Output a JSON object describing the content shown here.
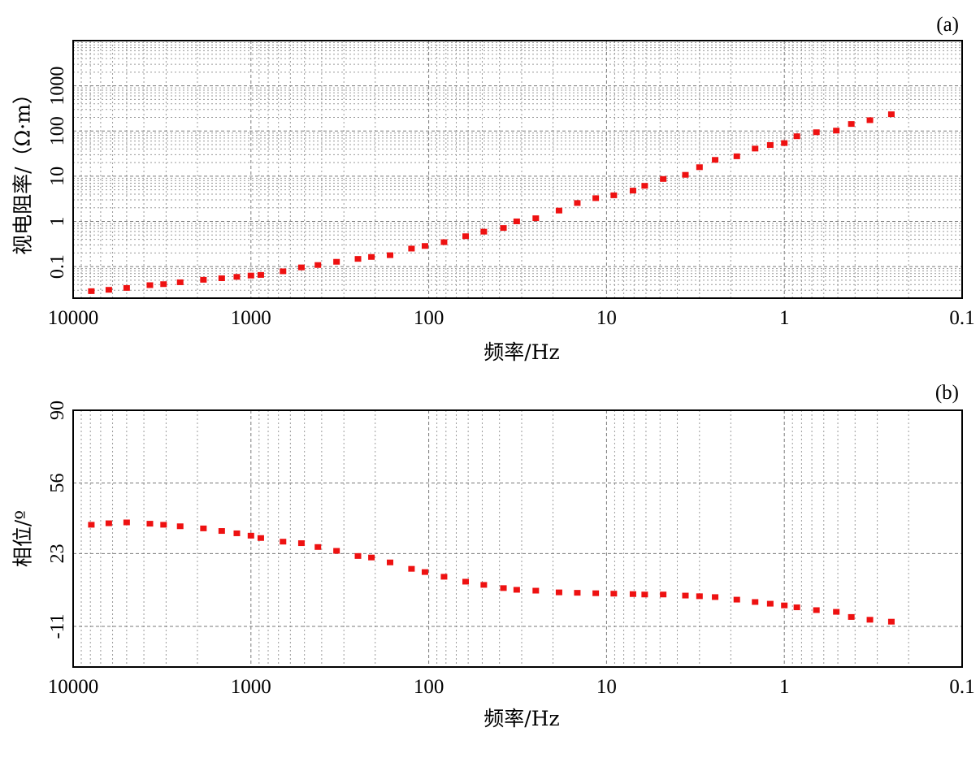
{
  "chart_data": [
    {
      "panel_label": "(a)",
      "type": "scatter",
      "title": "",
      "xlabel": "频率/Hz",
      "ylabel": "视电阻率/（Ω·m）",
      "x_scale": "log",
      "x_reversed": true,
      "xlim": [
        10000,
        0.1
      ],
      "xticks": [
        "10000",
        "1000",
        "100",
        "10",
        "1",
        "0.1"
      ],
      "y_scale": "log",
      "ylim": [
        0.02,
        10000
      ],
      "yticks": [
        "0.1",
        "1",
        "10",
        "100",
        "1000"
      ],
      "grid": true,
      "marker_color": "#ee1111",
      "series": [
        {
          "x": [
            7900,
            6300,
            5000,
            3700,
            3100,
            2500,
            1850,
            1460,
            1200,
            1000,
            880,
            660,
            520,
            420,
            330,
            250,
            210,
            165,
            125,
            105,
            82,
            62,
            49,
            38,
            32,
            25,
            18.5,
            14.6,
            11.5,
            9.1,
            7.1,
            6.1,
            4.8,
            3.6,
            3.0,
            2.45,
            1.85,
            1.46,
            1.2,
            1.0,
            0.85,
            0.66,
            0.51,
            0.42,
            0.33,
            0.25
          ],
          "y": [
            0.028,
            0.03,
            0.033,
            0.038,
            0.04,
            0.044,
            0.05,
            0.054,
            0.058,
            0.062,
            0.064,
            0.077,
            0.094,
            0.106,
            0.125,
            0.145,
            0.16,
            0.175,
            0.245,
            0.28,
            0.34,
            0.46,
            0.58,
            0.7,
            0.98,
            1.15,
            1.7,
            2.5,
            3.2,
            3.7,
            4.7,
            6.0,
            8.5,
            10.5,
            15.5,
            22.5,
            27,
            40,
            48,
            53,
            75,
            92,
            100,
            140,
            170,
            230
          ]
        }
      ]
    },
    {
      "panel_label": "(b)",
      "type": "scatter",
      "title": "",
      "xlabel": "频率/Hz",
      "ylabel": "相位/º",
      "x_scale": "log",
      "x_reversed": true,
      "xlim": [
        10000,
        0.1
      ],
      "xticks": [
        "10000",
        "1000",
        "100",
        "10",
        "1",
        "0.1"
      ],
      "y_scale": "linear",
      "ylim": [
        -30,
        90
      ],
      "yticks": [
        "-11",
        "23",
        "56",
        "90"
      ],
      "grid": true,
      "marker_color": "#ee1111",
      "series": [
        {
          "x": [
            7900,
            6300,
            5000,
            3700,
            3100,
            2500,
            1850,
            1460,
            1200,
            1000,
            880,
            660,
            520,
            420,
            330,
            250,
            210,
            165,
            125,
            105,
            82,
            62,
            49,
            38,
            32,
            25,
            18.5,
            14.6,
            11.5,
            9.1,
            7.1,
            6.1,
            4.8,
            3.6,
            3.0,
            2.45,
            1.85,
            1.46,
            1.2,
            1.0,
            0.85,
            0.66,
            0.51,
            0.42,
            0.33,
            0.25
          ],
          "y": [
            36.3,
            37.0,
            37.4,
            36.8,
            36.3,
            35.6,
            34.6,
            33.4,
            32.3,
            31.2,
            30.1,
            28.4,
            27.7,
            25.9,
            24.1,
            21.7,
            21.0,
            18.7,
            15.7,
            14.2,
            12.0,
            9.7,
            8.2,
            6.7,
            5.9,
            5.5,
            4.7,
            4.5,
            4.3,
            4.1,
            3.9,
            3.7,
            3.7,
            3.2,
            2.9,
            2.5,
            1.3,
            0.2,
            -0.6,
            -1.4,
            -2.3,
            -3.6,
            -4.4,
            -6.8,
            -8.1,
            -9.0
          ]
        }
      ]
    }
  ]
}
